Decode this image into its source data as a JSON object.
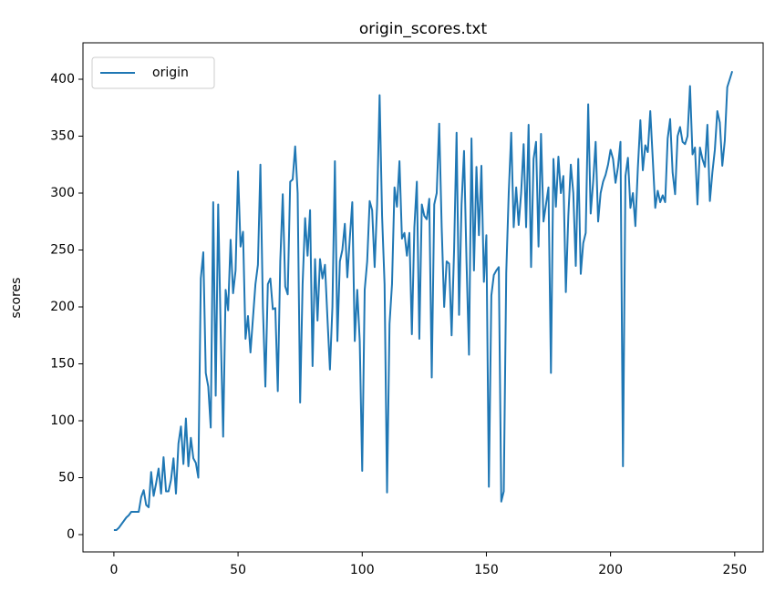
{
  "chart_data": {
    "type": "line",
    "title": "origin_scores.txt",
    "ylabel": "scores",
    "x": [
      0,
      1,
      2,
      3,
      4,
      5,
      6,
      7,
      8,
      9,
      10,
      11,
      12,
      13,
      14,
      15,
      16,
      17,
      18,
      19,
      20,
      21,
      22,
      23,
      24,
      25,
      26,
      27,
      28,
      29,
      30,
      31,
      32,
      33,
      34,
      35,
      36,
      37,
      38,
      39,
      40,
      41,
      42,
      43,
      44,
      45,
      46,
      47,
      48,
      49,
      50,
      51,
      52,
      53,
      54,
      55,
      56,
      57,
      58,
      59,
      60,
      61,
      62,
      63,
      64,
      65,
      66,
      67,
      68,
      69,
      70,
      71,
      72,
      73,
      74,
      75,
      76,
      77,
      78,
      79,
      80,
      81,
      82,
      83,
      84,
      85,
      86,
      87,
      88,
      89,
      90,
      91,
      92,
      93,
      94,
      95,
      96,
      97,
      98,
      99,
      100,
      101,
      102,
      103,
      104,
      105,
      106,
      107,
      108,
      109,
      110,
      111,
      112,
      113,
      114,
      115,
      116,
      117,
      118,
      119,
      120,
      121,
      122,
      123,
      124,
      125,
      126,
      127,
      128,
      129,
      130,
      131,
      132,
      133,
      134,
      135,
      136,
      137,
      138,
      139,
      140,
      141,
      142,
      143,
      144,
      145,
      146,
      147,
      148,
      149,
      150,
      151,
      152,
      153,
      154,
      155,
      156,
      157,
      158,
      159,
      160,
      161,
      162,
      163,
      164,
      165,
      166,
      167,
      168,
      169,
      170,
      171,
      172,
      173,
      174,
      175,
      176,
      177,
      178,
      179,
      180,
      181,
      182,
      183,
      184,
      185,
      186,
      187,
      188,
      189,
      190,
      191,
      192,
      193,
      194,
      195,
      196,
      197,
      198,
      199,
      200,
      201,
      202,
      203,
      204,
      205,
      206,
      207,
      208,
      209,
      210,
      211,
      212,
      213,
      214,
      215,
      216,
      217,
      218,
      219,
      220,
      221,
      222,
      223,
      224,
      225,
      226,
      227,
      228,
      229,
      230,
      231,
      232,
      233,
      234,
      235,
      236,
      237,
      238,
      239,
      240,
      241,
      242,
      243,
      244,
      245,
      246,
      247,
      248,
      249
    ],
    "series": [
      {
        "name": "origin",
        "color": "#1f77b4",
        "values": [
          4,
          4,
          6,
          9,
          12,
          15,
          17,
          20,
          20,
          20,
          20,
          33,
          39,
          26,
          24,
          55,
          34,
          45,
          58,
          36,
          68,
          38,
          38,
          48,
          67,
          36,
          80,
          95,
          62,
          102,
          60,
          85,
          67,
          63,
          50,
          225,
          248,
          142,
          130,
          94,
          292,
          122,
          290,
          180,
          86,
          215,
          197,
          259,
          212,
          232,
          319,
          253,
          266,
          172,
          192,
          160,
          190,
          220,
          237,
          325,
          200,
          130,
          220,
          225,
          198,
          199,
          126,
          240,
          299,
          218,
          211,
          310,
          312,
          341,
          300,
          116,
          220,
          278,
          245,
          285,
          148,
          242,
          188,
          242,
          225,
          237,
          190,
          145,
          200,
          328,
          170,
          240,
          250,
          273,
          226,
          260,
          292,
          170,
          215,
          170,
          56,
          215,
          240,
          293,
          285,
          235,
          290,
          386,
          280,
          220,
          37,
          185,
          220,
          305,
          288,
          328,
          260,
          265,
          245,
          265,
          176,
          270,
          310,
          172,
          290,
          280,
          277,
          295,
          138,
          290,
          300,
          361,
          270,
          200,
          240,
          238,
          175,
          250,
          353,
          193,
          290,
          337,
          240,
          158,
          348,
          232,
          323,
          263,
          324,
          222,
          263,
          42,
          210,
          228,
          232,
          235,
          29,
          38,
          230,
          300,
          353,
          270,
          305,
          272,
          300,
          343,
          270,
          360,
          235,
          330,
          345,
          253,
          352,
          275,
          290,
          305,
          142,
          330,
          288,
          332,
          300,
          315,
          213,
          280,
          325,
          300,
          236,
          330,
          229,
          256,
          265,
          378,
          282,
          310,
          345,
          275,
          300,
          310,
          316,
          325,
          338,
          330,
          309,
          323,
          345,
          60,
          315,
          331,
          287,
          300,
          271,
          322,
          364,
          320,
          342,
          336,
          372,
          330,
          287,
          302,
          292,
          298,
          292,
          348,
          365,
          318,
          299,
          350,
          358,
          345,
          343,
          350,
          394,
          334,
          340,
          290,
          340,
          330,
          323,
          360,
          293,
          318,
          338,
          372,
          362,
          324,
          346,
          393,
          400,
          407
        ]
      }
    ],
    "xlim": [
      -12.45,
      261.45
    ],
    "ylim": [
      -15.2,
      432
    ],
    "xticks": [
      0,
      50,
      100,
      150,
      200,
      250
    ],
    "yticks": [
      0,
      50,
      100,
      150,
      200,
      250,
      300,
      350,
      400
    ],
    "grid": false,
    "legend": "upper left"
  }
}
